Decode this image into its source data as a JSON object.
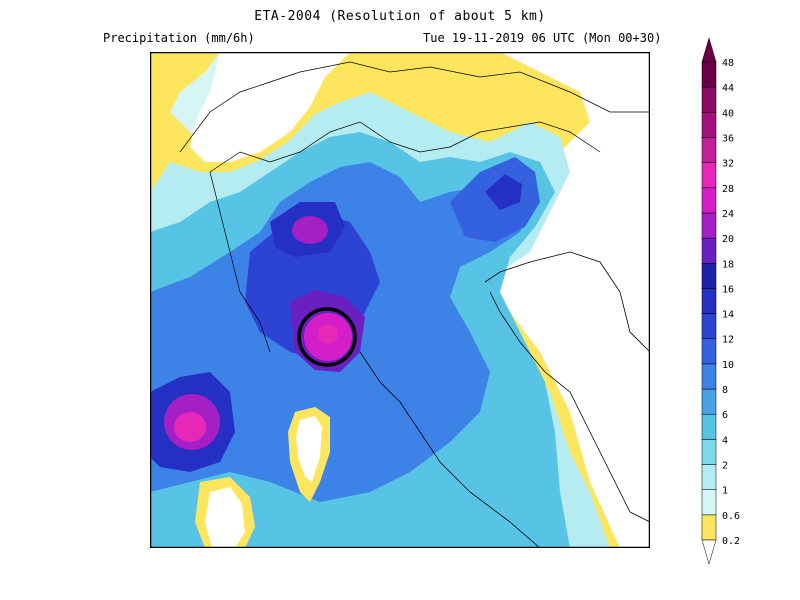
{
  "header": {
    "title": "ETA-2004 (Resolution of about 5 km)",
    "variable": "Precipitation (mm/6h)",
    "valid_time": "Tue 19-11-2019 06 UTC (Mon 00+30)"
  },
  "legend": {
    "levels": [
      "0.2",
      "0.6",
      "1",
      "2",
      "4",
      "6",
      "8",
      "10",
      "12",
      "14",
      "16",
      "18",
      "20",
      "24",
      "28",
      "32",
      "36",
      "40",
      "44",
      "48"
    ],
    "colors": [
      "#fde65e",
      "#d6f6f6",
      "#b4ecf2",
      "#7edbe8",
      "#57c4e6",
      "#47a3e6",
      "#3d82e6",
      "#3461e0",
      "#2c43d3",
      "#2430c3",
      "#1e21a8",
      "#6a1fc0",
      "#a41fc4",
      "#d41fc8",
      "#e628b8",
      "#c21f98",
      "#a4117c",
      "#8a0a66",
      "#6c0048"
    ]
  },
  "map": {
    "annotation": "circled-heavy-precipitation-core",
    "colors": {
      "sea": "#d6f6f6",
      "coast": "#fde65e",
      "land_light": "#57c4e6",
      "land_mid": "#3d82e6",
      "deep": "#2430c3",
      "core": "#d41fc8"
    }
  }
}
